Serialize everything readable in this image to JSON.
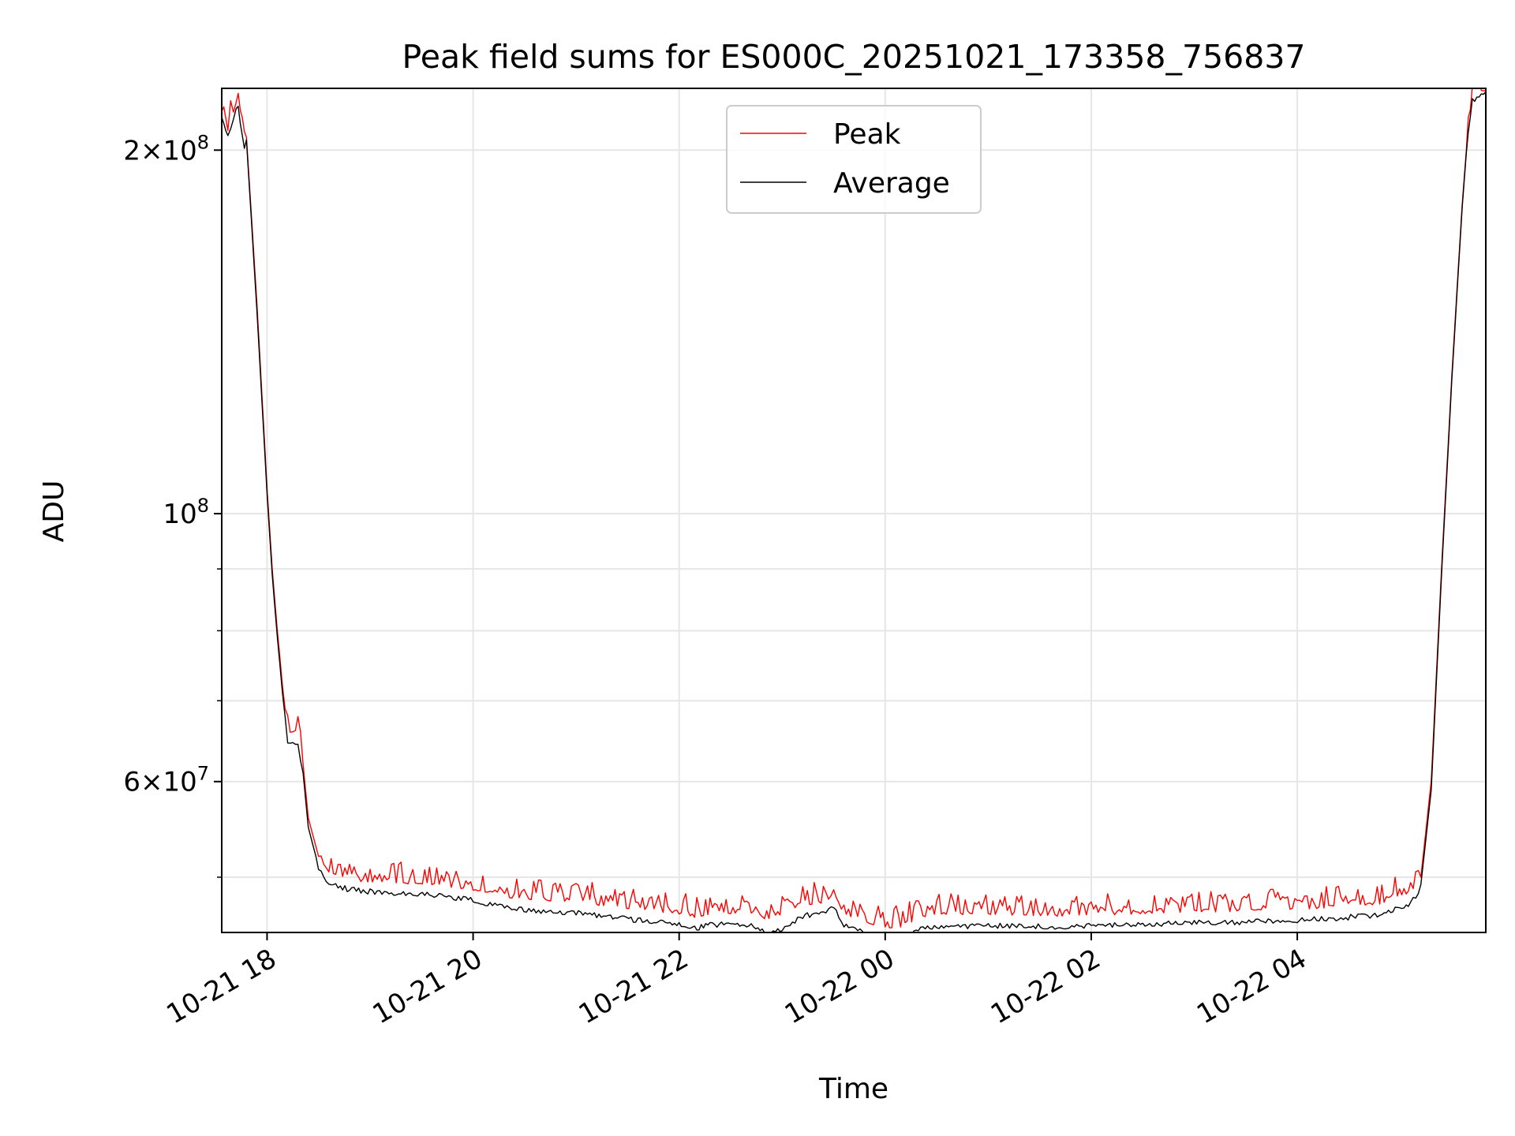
{
  "chart_data": {
    "type": "line",
    "title": "Peak field sums for ES000C_20251021_173358_756837",
    "xlabel": "Time",
    "ylabel": "ADU",
    "yscale": "log",
    "ylim": [
      45000000,
      225000000
    ],
    "xlim_hours": [
      17.56,
      29.83
    ],
    "x_ticks": [
      {
        "hour": 18,
        "label": "10-21 18"
      },
      {
        "hour": 20,
        "label": "10-21 20"
      },
      {
        "hour": 22,
        "label": "10-21 22"
      },
      {
        "hour": 24,
        "label": "10-22 00"
      },
      {
        "hour": 26,
        "label": "10-22 02"
      },
      {
        "hour": 28,
        "label": "10-22 04"
      }
    ],
    "y_major_ticks": [
      {
        "value": 200000000,
        "base": "2×10",
        "exp": "8"
      },
      {
        "value": 100000000,
        "base": "10",
        "exp": "8"
      },
      {
        "value": 60000000,
        "base": "6×10",
        "exp": "7"
      }
    ],
    "y_minor_grid": [
      50000000,
      70000000,
      80000000,
      90000000
    ],
    "grid": true,
    "legend": {
      "position": "upper center"
    },
    "series": [
      {
        "name": "Peak",
        "color": "#ff0000",
        "x_hours": [
          17.56,
          17.62,
          17.7,
          17.72,
          17.74,
          17.76,
          17.78,
          17.8,
          17.9,
          18.0,
          18.05,
          18.1,
          18.15,
          18.2,
          18.3,
          18.35,
          18.4,
          18.5,
          18.6,
          18.8,
          19.0,
          19.3,
          19.6,
          20.0,
          20.4,
          20.8,
          21.0,
          21.2,
          21.4,
          21.6,
          21.8,
          22.0,
          22.15,
          22.3,
          22.5,
          22.7,
          22.85,
          23.0,
          23.1,
          23.2,
          23.4,
          23.5,
          23.6,
          23.8,
          24.0,
          24.15,
          24.3,
          24.5,
          24.8,
          25.0,
          25.3,
          25.6,
          26.0,
          26.5,
          27.0,
          27.3,
          27.6,
          28.0,
          28.4,
          28.8,
          28.95,
          29.1,
          29.2,
          29.3,
          29.4,
          29.5,
          29.6,
          29.66,
          29.7,
          29.83
        ],
        "values": [
          215000000,
          207000000,
          219000000,
          219000000,
          213000000,
          208000000,
          203000000,
          205000000,
          150000000,
          105000000,
          90000000,
          80000000,
          72000000,
          66000000,
          65500000,
          62000000,
          56000000,
          52000000,
          50500000,
          49700000,
          49500000,
          49400000,
          49300000,
          48700000,
          48000000,
          47700000,
          47800000,
          47400000,
          47200000,
          47000000,
          46800000,
          46600000,
          46300000,
          46600000,
          46600000,
          46600000,
          46000000,
          46300000,
          46700000,
          47400000,
          47600000,
          48200000,
          46600000,
          45900000,
          45400000,
          45400000,
          46100000,
          46500000,
          46500000,
          46500000,
          46500000,
          46400000,
          46500000,
          46600000,
          46800000,
          46800000,
          46900000,
          47000000,
          47200000,
          47500000,
          48000000,
          48500000,
          50000000,
          60000000,
          90000000,
          130000000,
          180000000,
          210000000,
          222000000,
          224000000
        ]
      },
      {
        "name": "Average",
        "color": "#000000",
        "x_hours": [
          17.56,
          17.62,
          17.7,
          17.72,
          17.74,
          17.76,
          17.78,
          17.8,
          17.9,
          18.0,
          18.05,
          18.1,
          18.15,
          18.2,
          18.3,
          18.35,
          18.4,
          18.5,
          18.6,
          18.8,
          19.0,
          19.3,
          19.6,
          20.0,
          20.4,
          20.8,
          21.0,
          21.2,
          21.4,
          21.6,
          21.8,
          22.0,
          22.15,
          22.3,
          22.5,
          22.7,
          22.85,
          23.0,
          23.1,
          23.2,
          23.4,
          23.5,
          23.6,
          23.8,
          24.0,
          24.15,
          24.3,
          24.5,
          24.8,
          25.0,
          25.3,
          25.6,
          26.0,
          26.5,
          27.0,
          27.3,
          27.6,
          28.0,
          28.4,
          28.8,
          28.95,
          29.1,
          29.2,
          29.3,
          29.4,
          29.5,
          29.6,
          29.66,
          29.7,
          29.83
        ],
        "values": [
          213000000,
          206000000,
          218000000,
          218000000,
          212000000,
          207000000,
          202000000,
          204000000,
          148000000,
          104000000,
          89000000,
          79000000,
          71000000,
          65000000,
          64500000,
          61000000,
          55000000,
          51000000,
          49600000,
          49100000,
          48900000,
          48700000,
          48600000,
          48100000,
          47300000,
          47000000,
          47000000,
          46700000,
          46500000,
          46300000,
          46100000,
          45900000,
          45600000,
          45900000,
          45900000,
          45900000,
          45300000,
          45600000,
          46000000,
          46700000,
          46900000,
          47400000,
          45900000,
          45200000,
          44800000,
          44800000,
          45400000,
          45800000,
          45800000,
          45800000,
          45800000,
          45700000,
          45800000,
          45900000,
          46100000,
          46100000,
          46200000,
          46300000,
          46500000,
          46800000,
          47300000,
          47800000,
          49300000,
          59000000,
          89000000,
          129000000,
          179000000,
          209000000,
          221000000,
          223500000
        ]
      }
    ]
  }
}
